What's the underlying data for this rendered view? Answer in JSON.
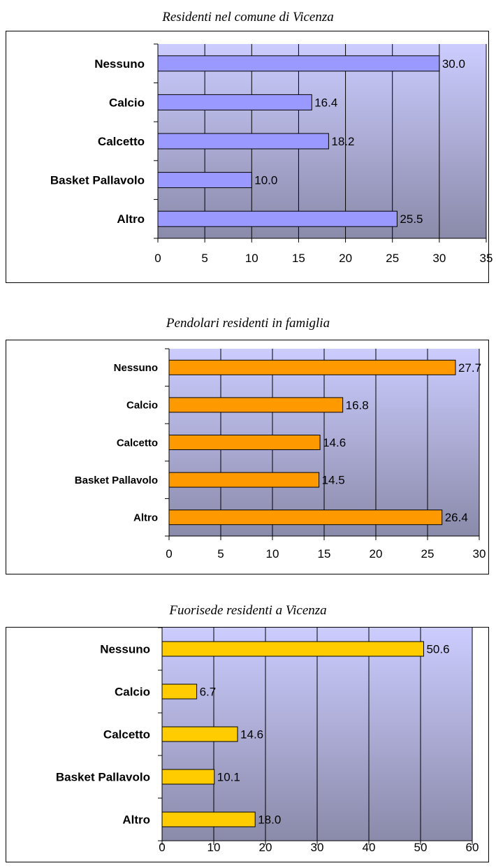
{
  "chart_data": [
    {
      "type": "bar",
      "orientation": "horizontal",
      "title": "Residenti nel comune di Vicenza",
      "categories": [
        "Nessuno",
        "Calcio",
        "Calcetto",
        "Basket Pallavolo",
        "Altro"
      ],
      "values": [
        30.0,
        16.4,
        18.2,
        10.0,
        25.5
      ],
      "value_labels": [
        "30.0",
        "16.4",
        "18.2",
        "10.0",
        "25.5"
      ],
      "xlim": [
        0,
        35
      ],
      "xticks": [
        0,
        5,
        10,
        15,
        20,
        25,
        30,
        35
      ],
      "grid": true,
      "legend": "none",
      "bar_color": "#9999ff",
      "plot_gradient": [
        "#ccccff",
        "#8a8aaa"
      ]
    },
    {
      "type": "bar",
      "orientation": "horizontal",
      "title": "Pendolari residenti in famiglia",
      "categories": [
        "Nessuno",
        "Calcio",
        "Calcetto",
        "Basket Pallavolo",
        "Altro"
      ],
      "values": [
        27.7,
        16.8,
        14.6,
        14.5,
        26.4
      ],
      "value_labels": [
        "27.7",
        "16.8",
        "14.6",
        "14.5",
        "26.4"
      ],
      "xlim": [
        0,
        30
      ],
      "xticks": [
        0,
        5,
        10,
        15,
        20,
        25,
        30
      ],
      "grid": true,
      "legend": "none",
      "bar_color": "#ff9900",
      "plot_gradient": [
        "#ccccff",
        "#8a8aaa"
      ]
    },
    {
      "type": "bar",
      "orientation": "horizontal",
      "title": "Fuorisede residenti a Vicenza",
      "categories": [
        "Nessuno",
        "Calcio",
        "Calcetto",
        "Basket Pallavolo",
        "Altro"
      ],
      "values": [
        50.6,
        6.7,
        14.6,
        10.1,
        18.0
      ],
      "value_labels": [
        "50.6",
        "6.7",
        "14.6",
        "10.1",
        "18.0"
      ],
      "xlim": [
        0,
        60
      ],
      "xticks": [
        0,
        10,
        20,
        30,
        40,
        50,
        60
      ],
      "grid": true,
      "legend": "none",
      "bar_color": "#ffcc00",
      "plot_gradient": [
        "#ccccff",
        "#8a8aaa"
      ]
    }
  ]
}
